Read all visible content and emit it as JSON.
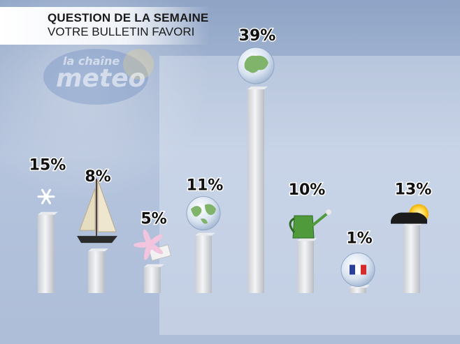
{
  "header": {
    "title": "QUESTION DE LA SEMAINE",
    "subtitle": "VOTRE BULLETIN FAVORI"
  },
  "watermark": {
    "logo_line1": "la chaîne",
    "logo_line2": "meteo"
  },
  "chart_data": {
    "type": "bar",
    "title": "QUESTION DE LA SEMAINE",
    "subtitle": "VOTRE BULLETIN FAVORI",
    "categories": [
      "snowflake-icon",
      "sailboat-icon",
      "flower-icon",
      "world-map-icon",
      "europe-globe-icon",
      "watering-can-icon",
      "france-flag-icon",
      "car-sun-icon"
    ],
    "values": [
      15,
      8,
      5,
      11,
      39,
      10,
      1,
      13
    ],
    "labels": [
      "15%",
      "8%",
      "5%",
      "11%",
      "39%",
      "10%",
      "1%",
      "13%"
    ],
    "ylim": [
      0,
      39
    ],
    "grid": false,
    "legend": "none"
  }
}
